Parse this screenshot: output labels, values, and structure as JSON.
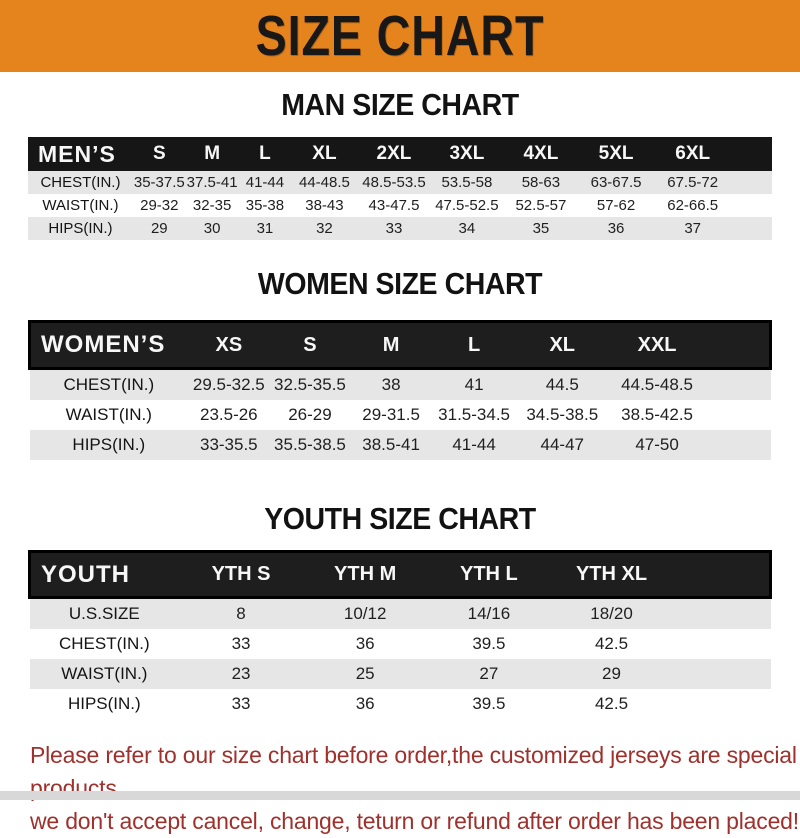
{
  "banner": {
    "title": "SIZE CHART",
    "bg_color": "#E5831D",
    "text_color": "#181818"
  },
  "sections": [
    {
      "title": "MAN SIZE CHART",
      "header_label": "MEN’S",
      "columns": [
        "S",
        "M",
        "L",
        "XL",
        "2XL",
        "3XL",
        "4XL",
        "5XL",
        "6XL"
      ],
      "rows": [
        {
          "label": "CHEST(IN.)",
          "values": [
            "35-37.5",
            "37.5-41",
            "41-44",
            "44-48.5",
            "48.5-53.5",
            "53.5-58",
            "58-63",
            "63-67.5",
            "67.5-72"
          ]
        },
        {
          "label": "WAIST(IN.)",
          "values": [
            "29-32",
            "32-35",
            "35-38",
            "38-43",
            "43-47.5",
            "47.5-52.5",
            "52.5-57",
            "57-62",
            "62-66.5"
          ]
        },
        {
          "label": "HIPS(IN.)",
          "values": [
            "29",
            "30",
            "31",
            "32",
            "33",
            "34",
            "35",
            "36",
            "37"
          ]
        }
      ]
    },
    {
      "title": "WOMEN SIZE CHART",
      "header_label": "WOMEN’S",
      "columns": [
        "XS",
        "S",
        "M",
        "L",
        "XL",
        "XXL"
      ],
      "rows": [
        {
          "label": "CHEST(IN.)",
          "values": [
            "29.5-32.5",
            "32.5-35.5",
            "38",
            "41",
            "44.5",
            "44.5-48.5"
          ]
        },
        {
          "label": "WAIST(IN.)",
          "values": [
            "23.5-26",
            "26-29",
            "29-31.5",
            "31.5-34.5",
            "34.5-38.5",
            "38.5-42.5"
          ]
        },
        {
          "label": "HIPS(IN.)",
          "values": [
            "33-35.5",
            "35.5-38.5",
            "38.5-41",
            "41-44",
            "44-47",
            "47-50"
          ]
        }
      ]
    },
    {
      "title": "YOUTH SIZE CHART",
      "header_label": "YOUTH",
      "columns": [
        "YTH S",
        "YTH M",
        "YTH L",
        "YTH XL"
      ],
      "rows": [
        {
          "label": "U.S.SIZE",
          "values": [
            "8",
            "10/12",
            "14/16",
            "18/20"
          ]
        },
        {
          "label": "CHEST(IN.)",
          "values": [
            "33",
            "36",
            "39.5",
            "42.5"
          ]
        },
        {
          "label": "WAIST(IN.)",
          "values": [
            "23",
            "25",
            "27",
            "29"
          ]
        },
        {
          "label": "HIPS(IN.)",
          "values": [
            "33",
            "36",
            "39.5",
            "42.5"
          ]
        }
      ]
    }
  ],
  "footer": {
    "line1": "Please refer to our size chart before order,the customized jerseys are special products,",
    "line2": "we don't accept cancel, change, teturn or refund after order has been placed!",
    "text_color": "#A0302C"
  },
  "colors": {
    "banner_orange": "#E5831D",
    "header_bar_black": "#161616",
    "row_stripe_gray": "#E6E6E6",
    "notice_red": "#A0302C"
  }
}
